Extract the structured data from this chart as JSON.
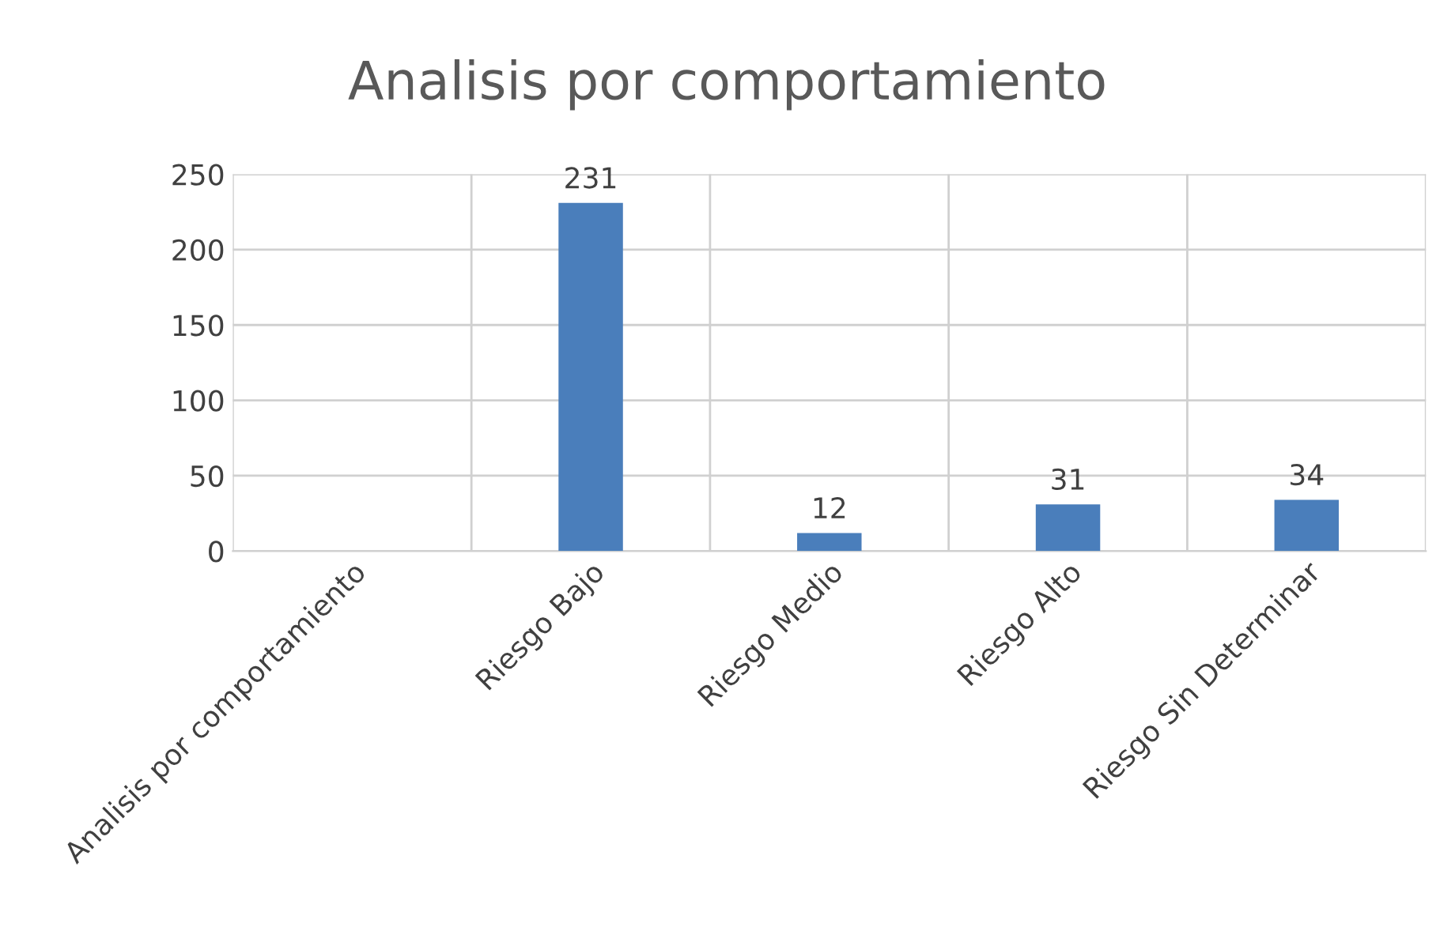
{
  "chart_data": {
    "type": "bar",
    "title": "Analisis por comportamiento",
    "categories": [
      "Analisis por comportamiento",
      "Riesgo Bajo",
      "Riesgo Medio",
      "Riesgo Alto",
      "Riesgo Sin Determinar"
    ],
    "values": [
      null,
      231,
      12,
      31,
      34
    ],
    "color": "#4a7ebb",
    "ylim": [
      0,
      250
    ],
    "yticks": [
      0,
      50,
      100,
      150,
      200,
      250
    ],
    "grid": true,
    "data_labels": true,
    "legend": false
  }
}
